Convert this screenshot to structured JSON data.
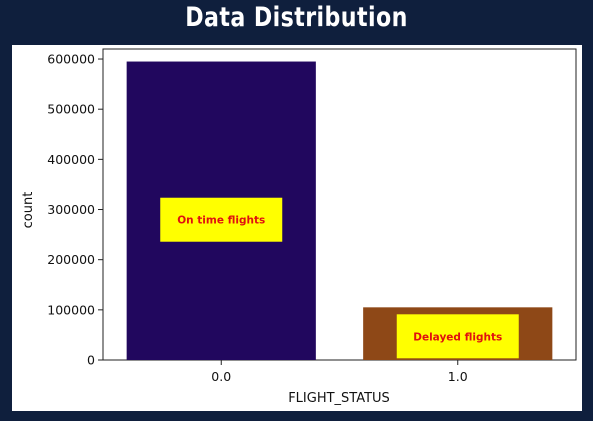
{
  "header": {
    "title": "Data Distribution"
  },
  "colors": {
    "background": "#0f1f3d",
    "on_time_bar": "#21075e",
    "delayed_bar": "#8e4817",
    "annotation_box": "#ffff00",
    "annotation_text": "#e01010"
  },
  "chart_data": {
    "type": "bar",
    "categories": [
      "0.0",
      "1.0"
    ],
    "values": [
      595000,
      105000
    ],
    "xlabel": "FLIGHT_STATUS",
    "ylabel": "count",
    "ylim": [
      0,
      620000
    ],
    "yticks": [
      0,
      100000,
      200000,
      300000,
      400000,
      500000,
      600000
    ],
    "grid": false,
    "annotations": [
      "On time flights",
      "Delayed flights"
    ]
  }
}
